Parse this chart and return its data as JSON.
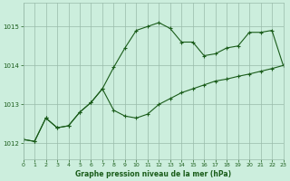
{
  "title": "Graphe pression niveau de la mer (hPa)",
  "background_color": "#cceedd",
  "grid_color": "#99bbaa",
  "line_color": "#1a5c1a",
  "x_min": 0,
  "x_max": 23,
  "y_min": 1011.6,
  "y_max": 1015.6,
  "yticks": [
    1012,
    1013,
    1014,
    1015
  ],
  "xticks": [
    0,
    1,
    2,
    3,
    4,
    5,
    6,
    7,
    8,
    9,
    10,
    11,
    12,
    13,
    14,
    15,
    16,
    17,
    18,
    19,
    20,
    21,
    22,
    23
  ],
  "line1_x": [
    0,
    1,
    2,
    3,
    4,
    5,
    6,
    7,
    8,
    9,
    10,
    11,
    12,
    13,
    14,
    15,
    16,
    17,
    18,
    19,
    20,
    21,
    22,
    23
  ],
  "line1_y": [
    1012.1,
    1012.05,
    1012.65,
    1012.4,
    1012.45,
    1012.8,
    1013.05,
    1013.4,
    1013.95,
    1014.45,
    1014.9,
    1015.0,
    1015.1,
    1014.95,
    1014.6,
    1014.6,
    1014.25,
    1014.3,
    1014.45,
    1014.5,
    1014.85,
    1014.85,
    1014.9,
    1014.0
  ],
  "line2_x": [
    0,
    1,
    2,
    3,
    4,
    5,
    6,
    7,
    8,
    9,
    10,
    11,
    12,
    13,
    14,
    15,
    16,
    17,
    18,
    19,
    20,
    21,
    22,
    23
  ],
  "line2_y": [
    1012.1,
    1012.05,
    1012.65,
    1012.4,
    1012.45,
    1012.8,
    1013.05,
    1013.4,
    1012.85,
    1012.7,
    1012.65,
    1012.75,
    1013.0,
    1013.15,
    1013.3,
    1013.4,
    1013.5,
    1013.6,
    1013.65,
    1013.72,
    1013.78,
    1013.85,
    1013.92,
    1014.0
  ],
  "figwidth": 3.2,
  "figheight": 2.0,
  "dpi": 100
}
